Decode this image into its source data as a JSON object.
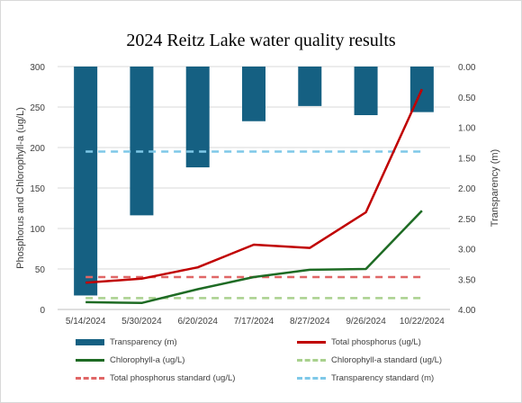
{
  "colors": {
    "transparency_bar": "#156082",
    "total_phosphorus": "#c00000",
    "chlorophyll": "#1e6b24",
    "chlorophyll_standard": "#a9d18e",
    "phosphorus_standard": "#e06666",
    "transparency_standard": "#7ec8e8",
    "gridline": "#d9d9d9"
  },
  "chart_data": {
    "type": "bar",
    "title": "2024 Reitz Lake water quality results",
    "ylabel": "Phosphorus and Chlorophyll-a (ug/L)",
    "y2label": "Transparency (m)",
    "ylim": [
      0,
      300
    ],
    "y2lim": [
      0.0,
      4.0
    ],
    "y2_inverted": true,
    "grid": true,
    "legend_position": "bottom",
    "categories": [
      "5/14/2024",
      "5/30/2024",
      "6/20/2024",
      "7/17/2024",
      "8/27/2024",
      "9/26/2024",
      "10/22/2024"
    ],
    "y_ticks": [
      "0",
      "50",
      "100",
      "150",
      "200",
      "250",
      "300"
    ],
    "y2_ticks": [
      "0.00",
      "0.50",
      "1.00",
      "1.50",
      "2.00",
      "2.50",
      "3.00",
      "3.50",
      "4.00"
    ],
    "series": [
      {
        "name": "Transparency (m)",
        "type": "bar",
        "axis": "right",
        "values": [
          3.77,
          2.45,
          1.66,
          0.9,
          0.65,
          0.8,
          0.75
        ]
      },
      {
        "name": "Total phosphorus (ug/L)",
        "type": "line",
        "axis": "left",
        "values": [
          33,
          38,
          52,
          80,
          76,
          120,
          272
        ]
      },
      {
        "name": "Chlorophyll-a (ug/L)",
        "type": "line",
        "axis": "left",
        "values": [
          9,
          8,
          25,
          40,
          49,
          50,
          122
        ]
      },
      {
        "name": "Chlorophyll-a standard (ug/L)",
        "type": "dashed",
        "axis": "left",
        "values": [
          14,
          14,
          14,
          14,
          14,
          14,
          14
        ]
      },
      {
        "name": "Total phosphorus standard (ug/L)",
        "type": "dashed",
        "axis": "left",
        "values": [
          40,
          40,
          40,
          40,
          40,
          40,
          40
        ]
      },
      {
        "name": "Transparency standard (m)",
        "type": "dashed",
        "axis": "right",
        "values": [
          1.4,
          1.4,
          1.4,
          1.4,
          1.4,
          1.4,
          1.4
        ]
      }
    ]
  }
}
